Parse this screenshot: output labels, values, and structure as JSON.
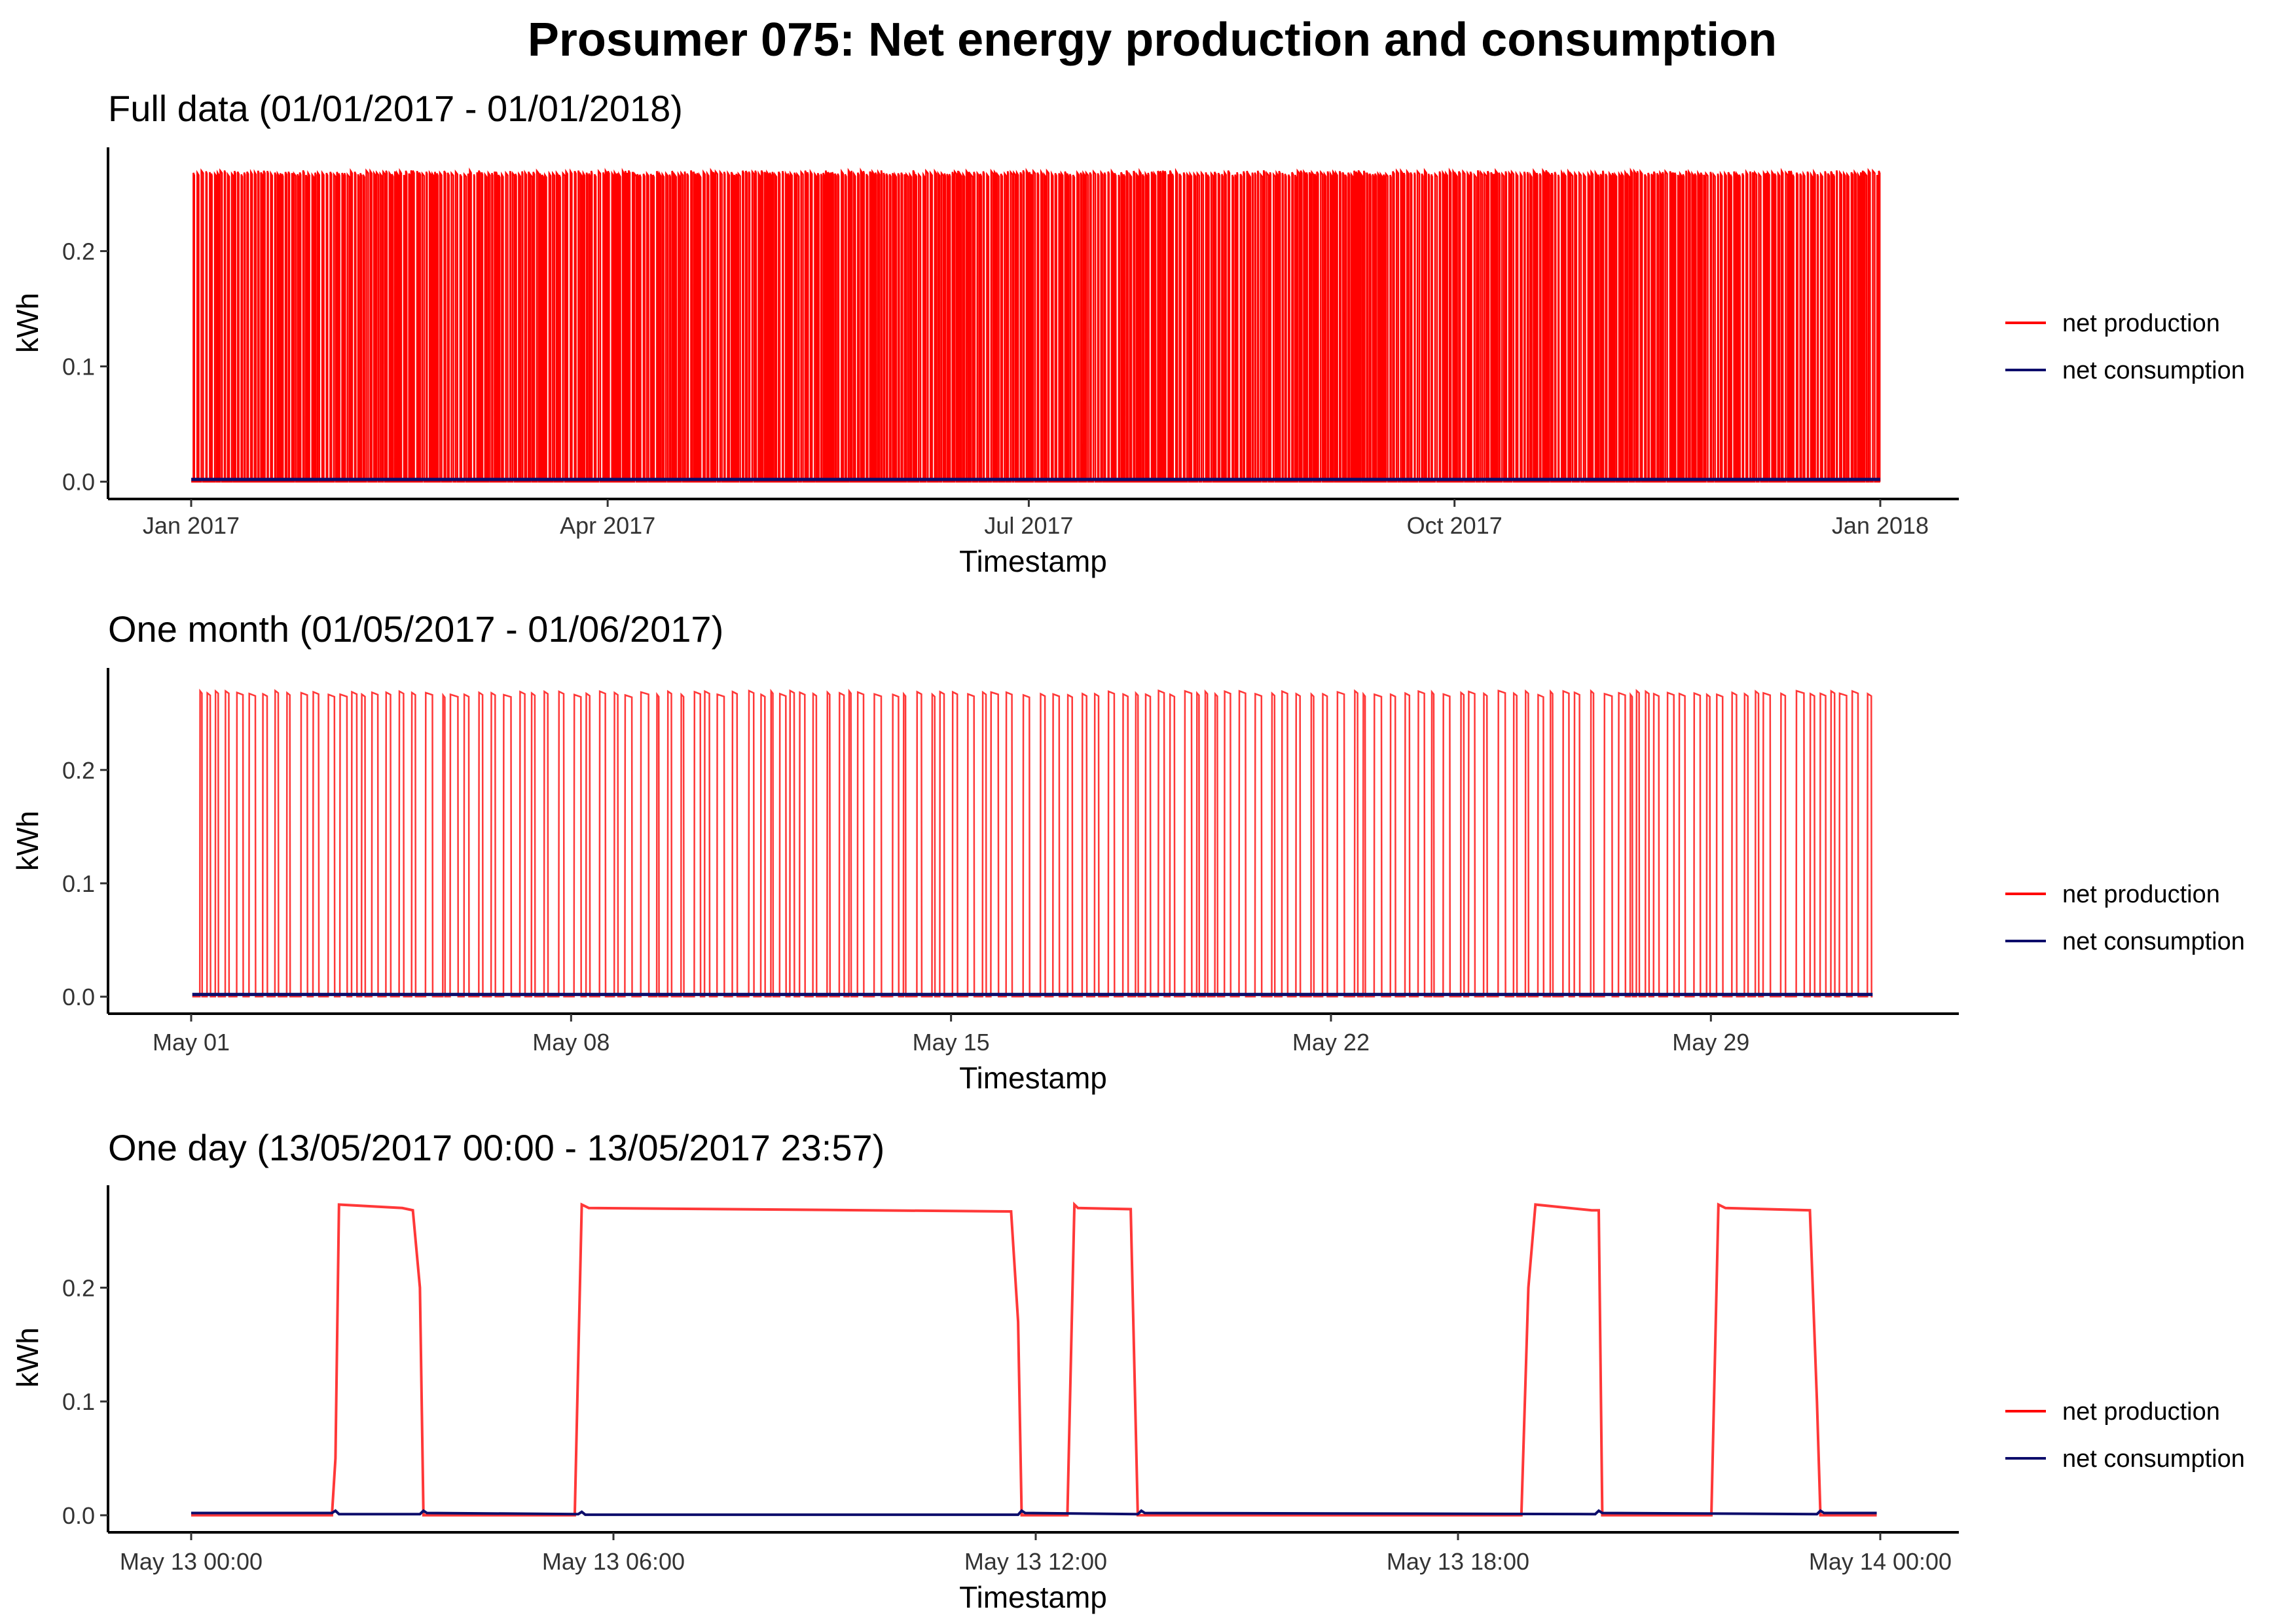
{
  "title": "Prosumer 075: Net energy production and consumption",
  "colors": {
    "production": "#ff0000",
    "consumption": "#0d0d6b",
    "axis": "#000000"
  },
  "legend": {
    "production": "net production",
    "consumption": "net consumption"
  },
  "chart_data": [
    {
      "type": "line",
      "title": "Full data (01/01/2017 - 01/01/2018)",
      "xlabel": "Timestamp",
      "ylabel": "kWh",
      "x_range": [
        "2017-01-01",
        "2018-01-01"
      ],
      "ylim": [
        -0.015,
        0.29
      ],
      "y_ticks": [
        0.0,
        0.1,
        0.2
      ],
      "y_tick_labels": [
        "0.0",
        "0.1",
        "0.2"
      ],
      "x_ticks": [
        "2017-01-01",
        "2017-04-01",
        "2017-07-01",
        "2017-10-01",
        "2018-01-01"
      ],
      "x_tick_labels": [
        "Jan 2017",
        "Apr 2017",
        "Jul 2017",
        "Oct 2017",
        "Jan 2018"
      ],
      "grid": false,
      "legend_position": "right",
      "production_peak_kwh": 0.27,
      "consumption_kwh": 0.002,
      "series": [
        {
          "name": "net production",
          "pattern": "frequent on/off cycling between 0.00 and ~0.27 kWh throughout the year"
        },
        {
          "name": "net consumption",
          "pattern": "near 0.00 kWh throughout"
        }
      ]
    },
    {
      "type": "line",
      "title": "One month (01/05/2017 - 01/06/2017)",
      "xlabel": "Timestamp",
      "ylabel": "kWh",
      "x_range": [
        "2017-05-01",
        "2017-06-01"
      ],
      "ylim": [
        -0.015,
        0.29
      ],
      "y_ticks": [
        0.0,
        0.1,
        0.2
      ],
      "y_tick_labels": [
        "0.0",
        "0.1",
        "0.2"
      ],
      "x_ticks": [
        "2017-05-01",
        "2017-05-08",
        "2017-05-15",
        "2017-05-22",
        "2017-05-29"
      ],
      "x_tick_labels": [
        "May 01",
        "May 08",
        "May 15",
        "May 22",
        "May 29"
      ],
      "grid": false,
      "legend_position": "right",
      "production_peak_kwh": 0.27,
      "consumption_kwh": 0.002,
      "series": [
        {
          "name": "net production",
          "pattern": "on/off cycles of ~0.27 kWh, several per day"
        },
        {
          "name": "net consumption",
          "pattern": "near 0.00 kWh with tiny spikes at cycle edges"
        }
      ]
    },
    {
      "type": "line",
      "title": "One day (13/05/2017 00:00 - 13/05/2017 23:57)",
      "xlabel": "Timestamp",
      "ylabel": "kWh",
      "x_range_hours": [
        0,
        24
      ],
      "ylim": [
        -0.015,
        0.29
      ],
      "y_ticks": [
        0.0,
        0.1,
        0.2
      ],
      "y_tick_labels": [
        "0.0",
        "0.1",
        "0.2"
      ],
      "x_ticks_hours": [
        0,
        6,
        12,
        18,
        24
      ],
      "x_tick_labels": [
        "May 13 00:00",
        "May 13 06:00",
        "May 13 12:00",
        "May 13 18:00",
        "May 14 00:00"
      ],
      "grid": false,
      "legend_position": "right",
      "series": [
        {
          "name": "net production",
          "x_hours": [
            0,
            2.0,
            2.05,
            2.1,
            3.0,
            3.15,
            3.25,
            3.3,
            5.45,
            5.55,
            5.65,
            11.65,
            11.75,
            11.8,
            12.45,
            12.55,
            12.6,
            13.35,
            13.45,
            13.5,
            18.9,
            19.0,
            19.1,
            19.9,
            20.0,
            20.05,
            21.6,
            21.7,
            21.8,
            23.0,
            23.1,
            23.15,
            23.95
          ],
          "values": [
            0.0,
            0.0,
            0.05,
            0.273,
            0.27,
            0.268,
            0.2,
            0.0,
            0.0,
            0.273,
            0.27,
            0.267,
            0.17,
            0.0,
            0.0,
            0.273,
            0.27,
            0.269,
            0.0,
            0.0,
            0.0,
            0.2,
            0.273,
            0.268,
            0.268,
            0.0,
            0.0,
            0.273,
            0.27,
            0.268,
            0.1,
            0.0,
            0.0
          ]
        },
        {
          "name": "net consumption",
          "x_hours": [
            0,
            2.0,
            2.05,
            2.1,
            3.25,
            3.3,
            3.35,
            5.5,
            5.55,
            5.6,
            11.75,
            11.8,
            11.85,
            13.45,
            13.5,
            13.55,
            19.95,
            20.0,
            20.05,
            23.1,
            23.15,
            23.2,
            23.95
          ],
          "values": [
            0.002,
            0.002,
            0.004,
            0.001,
            0.001,
            0.004,
            0.002,
            0.001,
            0.003,
            0.0005,
            0.0005,
            0.004,
            0.002,
            0.001,
            0.004,
            0.002,
            0.001,
            0.004,
            0.002,
            0.001,
            0.004,
            0.002,
            0.002
          ]
        }
      ]
    }
  ]
}
